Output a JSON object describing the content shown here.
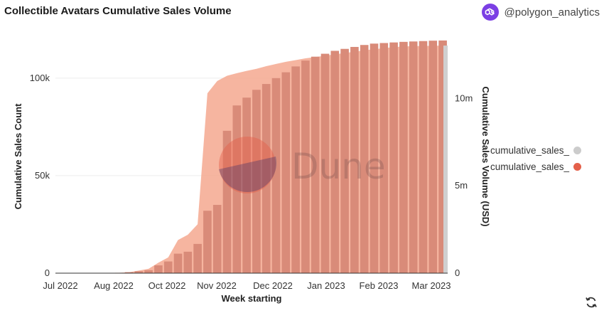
{
  "header": {
    "title": "Collectible Avatars Cumulative Sales Volume",
    "handle": "@polygon_analytics"
  },
  "chart_data": {
    "type": "bar+area",
    "title": "Collectible Avatars Cumulative Sales Volume",
    "xlabel": "Week starting",
    "ylabel_left": "Cumulative Sales Count",
    "ylabel_right": "Cumulative Sales Volume (USD)",
    "x_tick_labels": [
      "Jul 2022",
      "Aug 2022",
      "Oct 2022",
      "Nov 2022",
      "Dec 2022",
      "Jan 2023",
      "Feb 2023",
      "Mar 2023"
    ],
    "y_left_ticks": [
      "0",
      "50k",
      "100k"
    ],
    "y_right_ticks": [
      "0",
      "5m",
      "10m"
    ],
    "y_left_lim": [
      0,
      120000
    ],
    "y_right_lim": [
      0,
      13400000
    ],
    "watermark": "Dune",
    "series": [
      {
        "name": "cumulative_sales_",
        "axis": "left",
        "kind": "bar",
        "color": "#d98b79",
        "values": [
          0,
          0,
          0,
          0,
          0,
          0,
          200,
          500,
          1000,
          1500,
          4000,
          6000,
          10000,
          11000,
          15000,
          32000,
          35000,
          73000,
          86000,
          90000,
          94000,
          97000,
          100000,
          103000,
          106000,
          109000,
          111000,
          112500,
          114000,
          115000,
          116000,
          117000,
          117700,
          118000,
          118300,
          118600,
          118800,
          119000,
          119200,
          119300
        ]
      },
      {
        "name": "cumulative_sales_",
        "axis": "right",
        "kind": "area",
        "color": "#f5a88f",
        "values": [
          0,
          0,
          0,
          0,
          0,
          0,
          20000,
          50000,
          150000,
          250000,
          600000,
          900000,
          1900000,
          2200000,
          2800000,
          10300000,
          11000000,
          11300000,
          11450000,
          11580000,
          11700000,
          11850000,
          11980000,
          12100000,
          12200000,
          12300000,
          12370000,
          12450000,
          12530000,
          12600000,
          12680000,
          12760000,
          12820000,
          12880000,
          12940000,
          12980000,
          13000000,
          13010000,
          13020000,
          13030000
        ]
      }
    ],
    "legend": [
      "cumulative_sales_",
      "cumulative_sales_"
    ],
    "legend_colors": [
      "#cccccc",
      "#e4604a"
    ]
  }
}
